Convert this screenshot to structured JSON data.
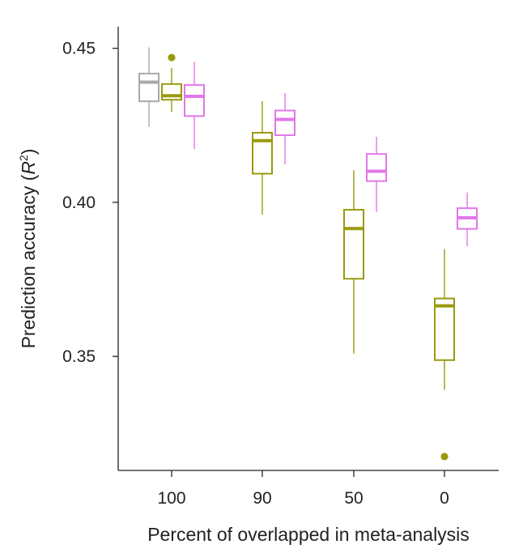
{
  "chart_data": {
    "type": "box",
    "xlabel": "Percent of overlapped in meta-analysis",
    "ylabel": {
      "prefix": "Prediction accuracy (",
      "var": "R",
      "sup": "2",
      "suffix": ")"
    },
    "ylim": [
      0.313,
      0.457
    ],
    "yticks": [
      0.35,
      0.4,
      0.45
    ],
    "ytick_labels": [
      "0.35",
      "0.40",
      "0.45"
    ],
    "categories": [
      "100",
      "90",
      "50",
      "0"
    ],
    "series": [
      {
        "name": "gray",
        "color": "#a9a9a9",
        "boxes": [
          {
            "category": "100",
            "min": 0.4245,
            "q1": 0.4328,
            "median": 0.439,
            "q3": 0.4418,
            "max": 0.4503,
            "outliers": []
          }
        ]
      },
      {
        "name": "olive",
        "color": "#9a9a0e",
        "boxes": [
          {
            "category": "100",
            "min": 0.4293,
            "q1": 0.4333,
            "median": 0.4346,
            "q3": 0.4384,
            "max": 0.4436,
            "outliers": [
              0.447
            ]
          },
          {
            "category": "90",
            "min": 0.396,
            "q1": 0.4093,
            "median": 0.42,
            "q3": 0.4226,
            "max": 0.4328,
            "outliers": []
          },
          {
            "category": "50",
            "min": 0.3509,
            "q1": 0.3752,
            "median": 0.3915,
            "q3": 0.3976,
            "max": 0.4104,
            "outliers": []
          },
          {
            "category": "0",
            "min": 0.3392,
            "q1": 0.3488,
            "median": 0.3664,
            "q3": 0.3688,
            "max": 0.3848,
            "outliers": [
              0.3175
            ]
          }
        ]
      },
      {
        "name": "magenta",
        "color": "#e377e8",
        "boxes": [
          {
            "category": "100",
            "min": 0.4173,
            "q1": 0.428,
            "median": 0.4344,
            "q3": 0.4381,
            "max": 0.4456,
            "outliers": []
          },
          {
            "category": "90",
            "min": 0.4123,
            "q1": 0.4218,
            "median": 0.4269,
            "q3": 0.4298,
            "max": 0.4354,
            "outliers": []
          },
          {
            "category": "50",
            "min": 0.3968,
            "q1": 0.4069,
            "median": 0.4101,
            "q3": 0.4157,
            "max": 0.4213,
            "outliers": []
          },
          {
            "category": "0",
            "min": 0.3858,
            "q1": 0.3914,
            "median": 0.395,
            "q3": 0.3981,
            "max": 0.4032,
            "outliers": []
          }
        ]
      }
    ],
    "grid": false,
    "legend": "none"
  }
}
